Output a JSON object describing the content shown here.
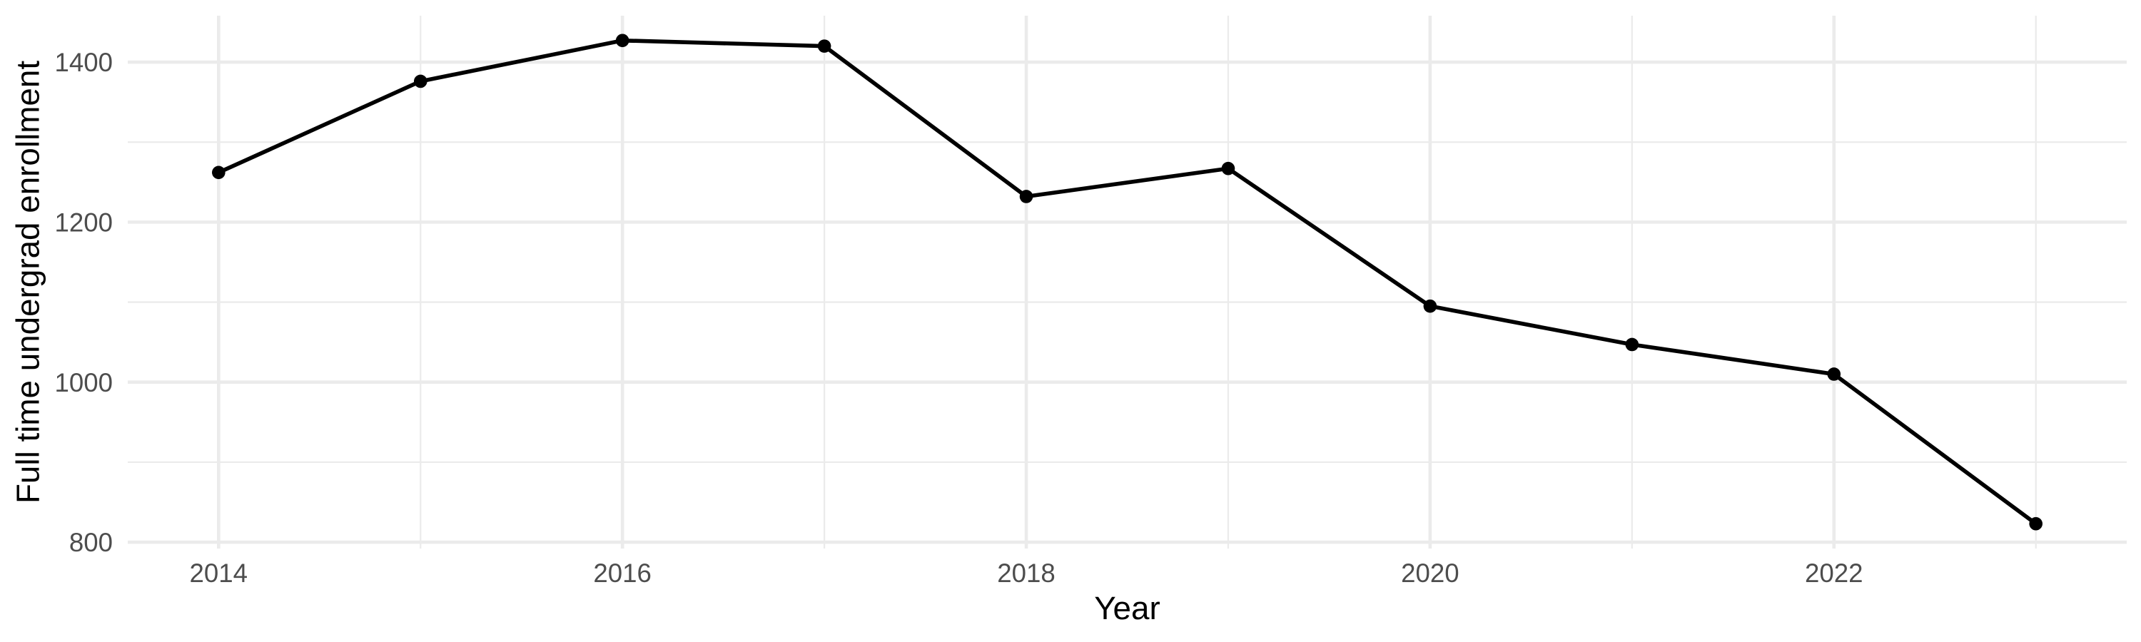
{
  "page": {
    "background": "#FFFFFF"
  },
  "chart_data": {
    "type": "line",
    "title": "",
    "xlabel": "Year",
    "ylabel": "Full time undergrad enrollment",
    "x": [
      2014,
      2015,
      2016,
      2017,
      2018,
      2019,
      2020,
      2021,
      2022,
      2023
    ],
    "values": [
      1262,
      1376,
      1427,
      1420,
      1232,
      1267,
      1095,
      1047,
      1010,
      823
    ],
    "series_name": "Full time undergrad enrollment",
    "x_major_ticks": [
      2014,
      2016,
      2018,
      2020,
      2022
    ],
    "x_minor_ticks": [
      2015,
      2017,
      2019,
      2021,
      2023
    ],
    "y_major_ticks": [
      800,
      1000,
      1200,
      1400
    ],
    "y_minor_ticks": [
      900,
      1100,
      1300
    ],
    "xlim": [
      2013.55,
      2023.45
    ],
    "ylim": [
      792,
      1458
    ],
    "grid": "major+minor",
    "legend": "none",
    "marker": "point"
  },
  "colors": {
    "line": "#000000",
    "point": "#000000",
    "grid": "#EBEBEB",
    "tick_label": "#4D4D4D",
    "axis_title": "#000000",
    "background": "#FFFFFF"
  }
}
